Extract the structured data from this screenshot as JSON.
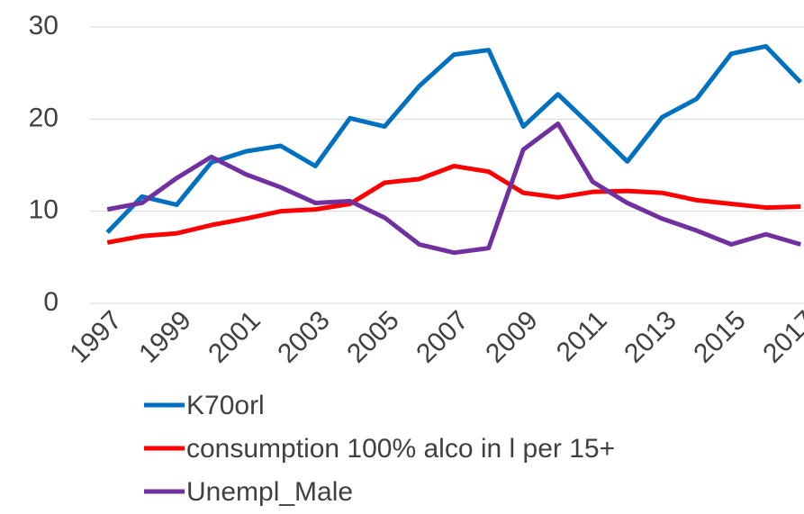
{
  "chart_data": {
    "type": "line",
    "categories": [
      "1997",
      null,
      "1999",
      null,
      "2001",
      null,
      "2003",
      null,
      "2005",
      null,
      "2007",
      null,
      "2009",
      null,
      "2011",
      null,
      "2013",
      null,
      "2015",
      null,
      "2017"
    ],
    "series": [
      {
        "name": "K70orl",
        "color": "#0070c0",
        "values": [
          7.7,
          11.6,
          10.7,
          15.3,
          16.5,
          17.1,
          14.9,
          20.1,
          19.2,
          23.6,
          27.0,
          27.5,
          19.2,
          22.7,
          19.1,
          15.4,
          20.2,
          22.2,
          27.1,
          27.9,
          24.0
        ]
      },
      {
        "name": "consumption 100% alco in l per 15+",
        "color": "#ff0000",
        "values": [
          6.6,
          7.3,
          7.6,
          8.5,
          9.2,
          10.0,
          10.2,
          10.8,
          13.1,
          13.5,
          14.9,
          14.3,
          12.0,
          11.5,
          12.1,
          12.2,
          12.0,
          11.2,
          10.8,
          10.4,
          10.5
        ]
      },
      {
        "name": "Unempl_Male",
        "color": "#7030a0",
        "values": [
          10.2,
          10.9,
          13.6,
          15.9,
          14.0,
          12.6,
          10.9,
          11.1,
          9.3,
          6.4,
          5.5,
          6.0,
          16.7,
          19.5,
          13.2,
          10.9,
          9.2,
          7.9,
          6.4,
          7.5,
          6.4
        ]
      }
    ],
    "ylim": [
      0,
      30
    ],
    "yticks": [
      0,
      10,
      20,
      30
    ],
    "grid": true,
    "legend": "bottom"
  }
}
